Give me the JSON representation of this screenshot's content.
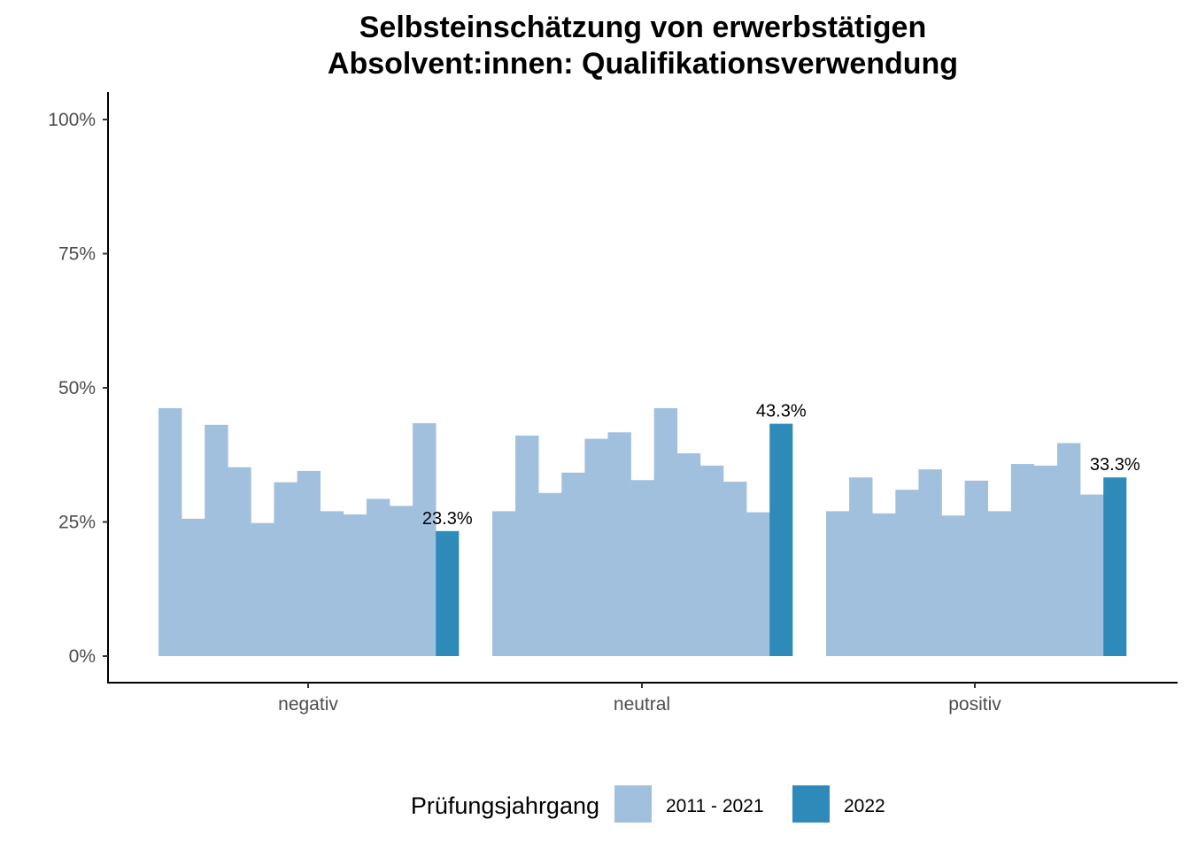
{
  "chart_data": {
    "type": "bar",
    "title_lines": [
      "Selbsteinschätzung von erwerbstätigen",
      "Absolvent:innen: Qualifikationsverwendung"
    ],
    "xlabel": "",
    "ylabel": "",
    "ylim": [
      0,
      1.05
    ],
    "y_ticks": [
      0,
      0.25,
      0.5,
      0.75,
      1.0
    ],
    "y_tick_labels": [
      "0%",
      "25%",
      "50%",
      "75%",
      "100%"
    ],
    "categories": [
      "negativ",
      "neutral",
      "positiv"
    ],
    "grid": false,
    "legend": {
      "title": "Prüfungsjahrgang",
      "position": "bottom",
      "entries": [
        {
          "label": "2011 - 2021",
          "color": "#a1c0dd"
        },
        {
          "label": "2022",
          "color": "#2e8bb9"
        }
      ]
    },
    "series": [
      {
        "name": "2011 - 2021",
        "color": "#a1c0dd",
        "values_per_category": [
          [
            0.462,
            0.256,
            0.431,
            0.352,
            0.248,
            0.324,
            0.345,
            0.27,
            0.264,
            0.293,
            0.28,
            0.434
          ],
          [
            0.27,
            0.411,
            0.304,
            0.342,
            0.405,
            0.417,
            0.328,
            0.462,
            0.378,
            0.355,
            0.325,
            0.268
          ],
          [
            0.27,
            0.333,
            0.266,
            0.31,
            0.348,
            0.262,
            0.327,
            0.27,
            0.358,
            0.355,
            0.397,
            0.301
          ]
        ]
      },
      {
        "name": "2022",
        "color": "#2e8bb9",
        "values": [
          0.233,
          0.433,
          0.333
        ],
        "labels": [
          "23.3%",
          "43.3%",
          "33.3%"
        ]
      }
    ]
  }
}
